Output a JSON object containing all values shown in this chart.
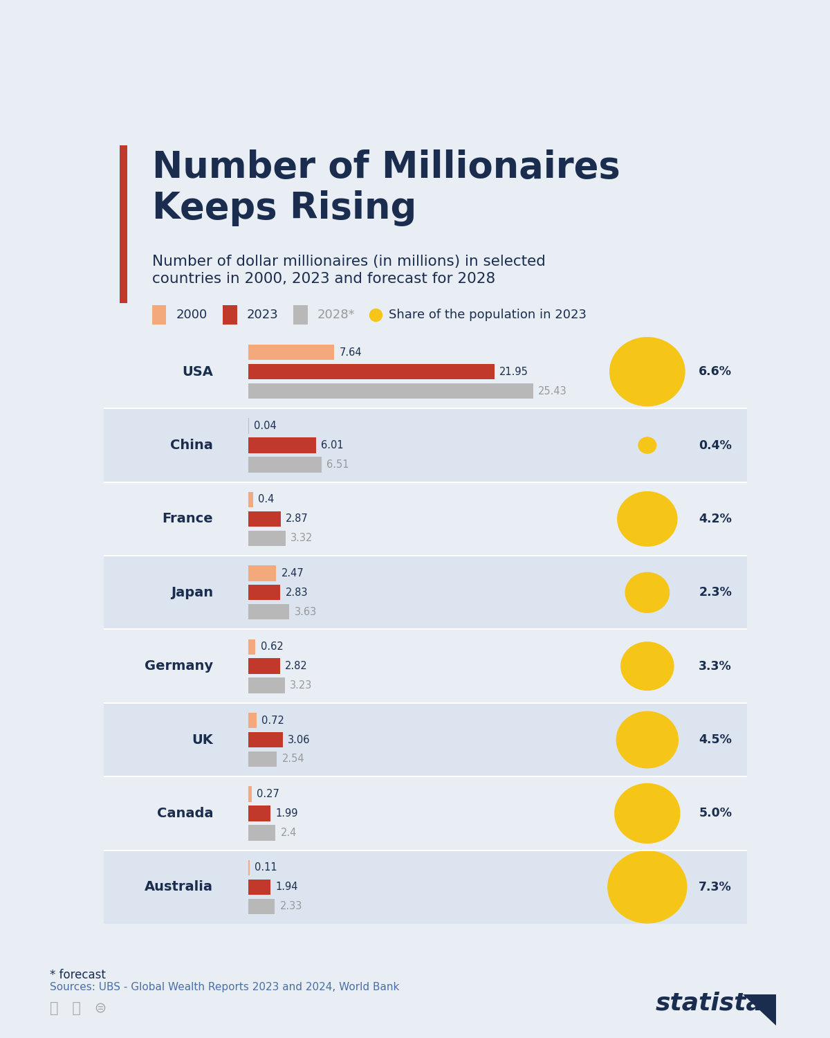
{
  "title": "Number of Millionaires\nKeeps Rising",
  "subtitle": "Number of dollar millionaires (in millions) in selected\ncountries in 2000, 2023 and forecast for 2028",
  "accent_color": "#c0392b",
  "title_color": "#1a2d4e",
  "subtitle_color": "#1a2d4e",
  "bg_color": "#e8eef4",
  "row_alt_color": "#dce4f0",
  "bar_color_2000": "#f4a97c",
  "bar_color_2023": "#c0392b",
  "bar_color_2028": "#b8b8b8",
  "bubble_color": "#f5c518",
  "legend_items": [
    "2000",
    "2023",
    "2028*",
    "Share of the population in 2023"
  ],
  "countries": [
    "USA",
    "China",
    "France",
    "Japan",
    "Germany",
    "UK",
    "Canada",
    "Australia"
  ],
  "values_2000": [
    7.64,
    0.04,
    0.4,
    2.47,
    0.62,
    0.72,
    0.27,
    0.11
  ],
  "values_2023": [
    21.95,
    6.01,
    2.87,
    2.83,
    2.82,
    3.06,
    1.99,
    1.94
  ],
  "values_2028": [
    25.43,
    6.51,
    3.32,
    3.63,
    3.23,
    2.54,
    2.4,
    2.33
  ],
  "share_2023": [
    6.6,
    0.4,
    4.2,
    2.3,
    3.3,
    4.5,
    5.0,
    7.3
  ],
  "max_bar": 27,
  "footnote": "* forecast",
  "source": "Sources: UBS - Global Wealth Reports 2023 and 2024, World Bank",
  "statista_color": "#1a2d4e",
  "label_color_2028": "#999999"
}
